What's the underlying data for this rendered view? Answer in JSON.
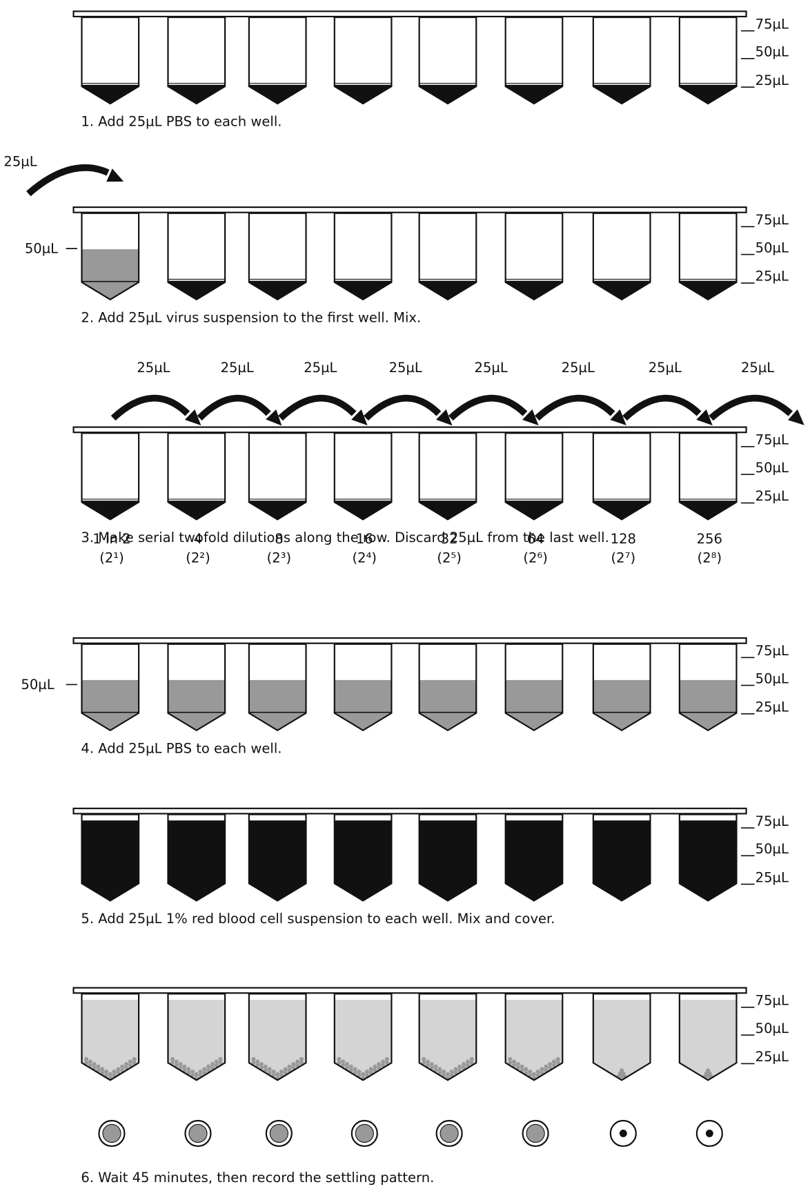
{
  "steps": [
    {
      "caption": "1. Add 25µL PBS to each well.",
      "scale": [
        "75µL",
        "50µL",
        "25µL"
      ]
    },
    {
      "caption": "2. Add 25µL virus suspension to the first well. Mix.",
      "scale": [
        "75µL",
        "50µL",
        "25µL"
      ],
      "transfer_label": "25µL",
      "level_label": "50µL"
    },
    {
      "caption": "3. Make serial twofold dilutions along the row. Discard 25µL from the last well.",
      "scale": [
        "75µL",
        "50µL",
        "25µL"
      ],
      "transfer_labels": [
        "25µL",
        "25µL",
        "25µL",
        "25µL",
        "25µL",
        "25µL",
        "25µL",
        "25µL"
      ],
      "dilutions": [
        {
          "label": "1 in 2",
          "power": "(2¹)"
        },
        {
          "label": "4",
          "power": "(2²)"
        },
        {
          "label": "8",
          "power": "(2³)"
        },
        {
          "label": "16",
          "power": "(2⁴)"
        },
        {
          "label": "32",
          "power": "(2⁵)"
        },
        {
          "label": "64",
          "power": "(2⁶)"
        },
        {
          "label": "128",
          "power": "(2⁷)"
        },
        {
          "label": "256",
          "power": "(2⁸)"
        }
      ]
    },
    {
      "caption": "4. Add 25µL PBS to each well.",
      "scale": [
        "75µL",
        "50µL",
        "25µL"
      ],
      "level_label": "50µL"
    },
    {
      "caption": "5. Add 25µL 1% red blood cell suspension to each well. Mix and cover.",
      "scale": [
        "75µL",
        "50µL",
        "25µL"
      ]
    },
    {
      "caption": "6. Wait 45 minutes, then record the settling pattern.",
      "scale": [
        "75µL",
        "50µL",
        "25µL"
      ]
    }
  ]
}
